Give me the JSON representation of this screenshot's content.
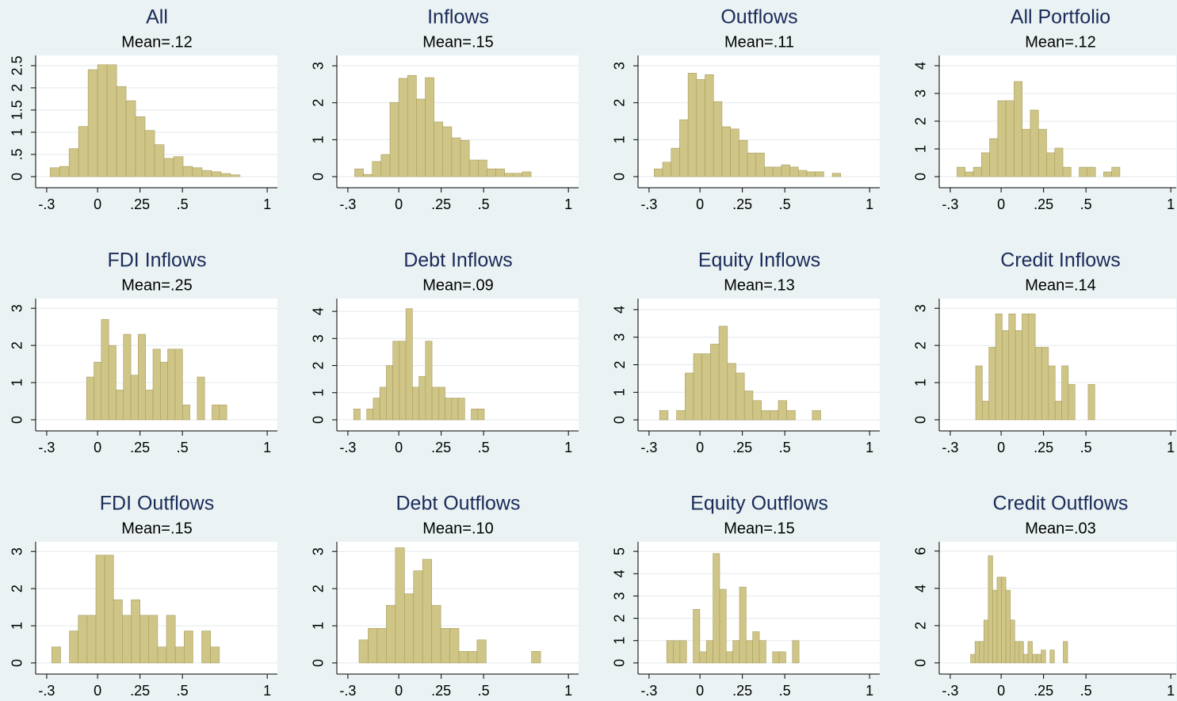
{
  "chart_data": [
    {
      "type": "histogram",
      "title": "All",
      "subtitle": "Mean=.12",
      "color": "#cfc587",
      "bins": [
        -0.28,
        -0.224,
        -0.168,
        -0.112,
        -0.056,
        0,
        0.056,
        0.112,
        0.168,
        0.224,
        0.28,
        0.336,
        0.392,
        0.448,
        0.504,
        0.56,
        0.616,
        0.672,
        0.728,
        0.784,
        0.84
      ],
      "values": [
        0.2,
        0.23,
        0.63,
        1.13,
        2.41,
        2.52,
        2.52,
        2.03,
        1.71,
        1.35,
        1.04,
        0.72,
        0.41,
        0.45,
        0.23,
        0.2,
        0.14,
        0.11,
        0.07,
        0.04
      ],
      "xlim": [
        -0.365,
        1.06
      ],
      "ylim": [
        -0.25,
        2.73
      ],
      "xticks": [
        {
          "value": -0.3,
          "label": "-.3"
        },
        0,
        {
          "value": 0.25,
          "label": ".25"
        },
        {
          "value": 0.5,
          "label": ".5"
        },
        1
      ],
      "yticks": [
        0,
        {
          "value": 0.5,
          "label": ".5"
        },
        1,
        1.5,
        2,
        2.5
      ],
      "grid": true
    },
    {
      "type": "histogram",
      "title": "Inflows",
      "subtitle": "Mean=.15",
      "color": "#cfc587",
      "bins": [
        -0.26,
        -0.208,
        -0.156,
        -0.104,
        -0.052,
        0,
        0.052,
        0.104,
        0.156,
        0.208,
        0.26,
        0.312,
        0.364,
        0.416,
        0.468,
        0.52,
        0.572,
        0.624,
        0.676,
        0.728,
        0.78
      ],
      "values": [
        0.21,
        0.06,
        0.41,
        0.6,
        2.01,
        2.66,
        2.74,
        2.1,
        2.68,
        1.48,
        1.35,
        1.05,
        0.98,
        0.45,
        0.45,
        0.21,
        0.21,
        0.09,
        0.09,
        0.13
      ],
      "xlim": [
        -0.365,
        1.06
      ],
      "ylim": [
        -0.3,
        3.28
      ],
      "xticks": [
        {
          "value": -0.3,
          "label": "-.3"
        },
        0,
        {
          "value": 0.25,
          "label": ".25"
        },
        {
          "value": 0.5,
          "label": ".5"
        },
        1
      ],
      "yticks": [
        0,
        1,
        2,
        3
      ],
      "grid": true
    },
    {
      "type": "histogram",
      "title": "Outflows",
      "subtitle": "Mean=.11",
      "color": "#cfc587",
      "bins": [
        -0.27,
        -0.22,
        -0.17,
        -0.12,
        -0.07,
        -0.02,
        0.03,
        0.08,
        0.13,
        0.18,
        0.23,
        0.28,
        0.33,
        0.38,
        0.43,
        0.48,
        0.53,
        0.58,
        0.63,
        0.68,
        0.73,
        0.78,
        0.83
      ],
      "values": [
        0.21,
        0.39,
        0.77,
        1.54,
        2.8,
        2.63,
        2.76,
        2.03,
        1.35,
        1.29,
        0.98,
        0.64,
        0.64,
        0.26,
        0.26,
        0.32,
        0.26,
        0.17,
        0.13,
        0.13,
        0,
        0.09
      ],
      "xlim": [
        -0.365,
        1.06
      ],
      "ylim": [
        -0.3,
        3.28
      ],
      "xticks": [
        {
          "value": -0.3,
          "label": "-.3"
        },
        0,
        {
          "value": 0.25,
          "label": ".25"
        },
        {
          "value": 0.5,
          "label": ".5"
        },
        1
      ],
      "yticks": [
        0,
        1,
        2,
        3
      ],
      "grid": true
    },
    {
      "type": "histogram",
      "title": "All Portfolio",
      "subtitle": "Mean=.12",
      "color": "#cfc587",
      "bins": [
        -0.26,
        -0.212,
        -0.164,
        -0.116,
        -0.068,
        -0.02,
        0.028,
        0.076,
        0.124,
        0.172,
        0.22,
        0.268,
        0.316,
        0.364,
        0.412,
        0.46,
        0.508,
        0.556,
        0.604,
        0.652,
        0.7
      ],
      "values": [
        0.34,
        0.17,
        0.34,
        0.86,
        1.37,
        2.74,
        2.74,
        3.43,
        1.71,
        2.4,
        1.71,
        0.86,
        1.03,
        0.34,
        0,
        0.34,
        0.34,
        0,
        0.17,
        0.34
      ],
      "xlim": [
        -0.365,
        1.06
      ],
      "ylim": [
        -0.4,
        4.37
      ],
      "xticks": [
        {
          "value": -0.3,
          "label": "-.3"
        },
        0,
        {
          "value": 0.25,
          "label": ".25"
        },
        {
          "value": 0.5,
          "label": ".5"
        },
        1
      ],
      "yticks": [
        0,
        1,
        2,
        3,
        4
      ],
      "grid": true
    },
    {
      "type": "histogram",
      "title": "FDI Inflows",
      "subtitle": "Mean=.25",
      "color": "#cfc587",
      "bins": [
        -0.065,
        -0.0215,
        0.022,
        0.0655,
        0.109,
        0.1525,
        0.196,
        0.2395,
        0.283,
        0.3265,
        0.37,
        0.4135,
        0.457,
        0.5005,
        0.544,
        0.5875,
        0.631,
        0.6745,
        0.718,
        0.7615
      ],
      "values": [
        1.15,
        1.55,
        2.7,
        2.0,
        0.8,
        2.3,
        1.2,
        2.3,
        0.8,
        1.9,
        1.55,
        1.9,
        1.9,
        0.4,
        0,
        1.15,
        0,
        0.4,
        0.4
      ],
      "xlim": [
        -0.365,
        1.06
      ],
      "ylim": [
        -0.3,
        3.26
      ],
      "xticks": [
        {
          "value": -0.3,
          "label": "-.3"
        },
        0,
        {
          "value": 0.25,
          "label": ".25"
        },
        {
          "value": 0.5,
          "label": ".5"
        },
        1
      ],
      "yticks": [
        0,
        1,
        2,
        3
      ],
      "grid": true
    },
    {
      "type": "histogram",
      "title": "Debt Inflows",
      "subtitle": "Mean=.09",
      "color": "#cfc587",
      "bins": [
        -0.266,
        -0.2275,
        -0.189,
        -0.1505,
        -0.112,
        -0.0735,
        -0.035,
        0.0035,
        0.042,
        0.0805,
        0.119,
        0.1575,
        0.196,
        0.2345,
        0.273,
        0.3115,
        0.35,
        0.3885,
        0.427,
        0.4655,
        0.504
      ],
      "values": [
        0.4,
        0,
        0.4,
        0.8,
        1.2,
        2.0,
        2.9,
        2.9,
        4.1,
        1.2,
        1.6,
        2.9,
        1.2,
        1.2,
        0.8,
        0.8,
        0.8,
        0,
        0.4,
        0.4
      ],
      "xlim": [
        -0.365,
        1.06
      ],
      "ylim": [
        -0.41,
        4.47
      ],
      "xticks": [
        {
          "value": -0.3,
          "label": "-.3"
        },
        0,
        {
          "value": 0.25,
          "label": ".25"
        },
        {
          "value": 0.5,
          "label": ".5"
        },
        1
      ],
      "yticks": [
        0,
        1,
        2,
        3,
        4
      ],
      "grid": true
    },
    {
      "type": "histogram",
      "title": "Equity Inflows",
      "subtitle": "Mean=.13",
      "color": "#cfc587",
      "bins": [
        -0.238,
        -0.188,
        -0.138,
        -0.088,
        -0.038,
        0.012,
        0.062,
        0.112,
        0.162,
        0.212,
        0.262,
        0.312,
        0.362,
        0.412,
        0.462,
        0.512,
        0.562,
        0.612,
        0.662,
        0.712
      ],
      "values": [
        0.34,
        0,
        0.34,
        1.7,
        2.4,
        2.4,
        2.75,
        3.4,
        2.05,
        1.7,
        1.05,
        0.7,
        0.34,
        0.34,
        0.7,
        0.34,
        0,
        0,
        0.34
      ],
      "xlim": [
        -0.365,
        1.06
      ],
      "ylim": [
        -0.4,
        4.4
      ],
      "xticks": [
        {
          "value": -0.3,
          "label": "-.3"
        },
        0,
        {
          "value": 0.25,
          "label": ".25"
        },
        {
          "value": 0.5,
          "label": ".5"
        },
        1
      ],
      "yticks": [
        0,
        1,
        2,
        3,
        4
      ],
      "grid": true
    },
    {
      "type": "histogram",
      "title": "Credit Inflows",
      "subtitle": "Mean=.14",
      "color": "#cfc587",
      "bins": [
        -0.15,
        -0.111,
        -0.072,
        -0.033,
        0.006,
        0.045,
        0.084,
        0.123,
        0.162,
        0.201,
        0.24,
        0.279,
        0.318,
        0.357,
        0.396,
        0.435,
        0.474,
        0.513,
        0.552
      ],
      "values": [
        1.45,
        0.5,
        1.95,
        2.85,
        2.4,
        2.85,
        2.4,
        2.85,
        2.85,
        1.95,
        1.95,
        1.45,
        0.5,
        1.45,
        0.95,
        0,
        0,
        0.95
      ],
      "xlim": [
        -0.365,
        1.06
      ],
      "ylim": [
        -0.3,
        3.26
      ],
      "xticks": [
        {
          "value": -0.3,
          "label": "-.3"
        },
        0,
        {
          "value": 0.25,
          "label": ".25"
        },
        {
          "value": 0.5,
          "label": ".5"
        },
        1
      ],
      "yticks": [
        0,
        1,
        2,
        3
      ],
      "grid": true
    },
    {
      "type": "histogram",
      "title": "FDI Outflows",
      "subtitle": "Mean=.15",
      "color": "#cfc587",
      "bins": [
        -0.27,
        -0.218,
        -0.166,
        -0.114,
        -0.062,
        -0.01,
        0.042,
        0.094,
        0.146,
        0.198,
        0.25,
        0.302,
        0.354,
        0.406,
        0.458,
        0.51,
        0.562,
        0.614,
        0.666,
        0.718
      ],
      "values": [
        0.43,
        0,
        0.86,
        1.28,
        1.28,
        2.9,
        2.9,
        1.7,
        1.28,
        1.7,
        1.28,
        1.28,
        0.43,
        1.28,
        0.43,
        0.86,
        0,
        0.86,
        0.43
      ],
      "xlim": [
        -0.365,
        1.06
      ],
      "ylim": [
        -0.3,
        3.26
      ],
      "xticks": [
        {
          "value": -0.3,
          "label": "-.3"
        },
        0,
        {
          "value": 0.25,
          "label": ".25"
        },
        {
          "value": 0.5,
          "label": ".5"
        },
        1
      ],
      "yticks": [
        0,
        1,
        2,
        3
      ],
      "grid": true
    },
    {
      "type": "histogram",
      "title": "Debt Outflows",
      "subtitle": "Mean=.10",
      "color": "#cfc587",
      "bins": [
        -0.234,
        -0.1805,
        -0.127,
        -0.0735,
        -0.02,
        0.0335,
        0.087,
        0.1405,
        0.194,
        0.2475,
        0.301,
        0.3545,
        0.408,
        0.4615,
        0.515,
        0.5685,
        0.622,
        0.6755,
        0.729,
        0.7825,
        0.836
      ],
      "values": [
        0.62,
        0.93,
        0.93,
        1.55,
        3.1,
        1.86,
        2.48,
        2.79,
        1.55,
        0.93,
        0.93,
        0.31,
        0.31,
        0.62,
        0,
        0,
        0,
        0,
        0,
        0.31
      ],
      "xlim": [
        -0.365,
        1.06
      ],
      "ylim": [
        -0.3,
        3.26
      ],
      "xticks": [
        {
          "value": -0.3,
          "label": "-.3"
        },
        0,
        {
          "value": 0.25,
          "label": ".25"
        },
        {
          "value": 0.5,
          "label": ".5"
        },
        1
      ],
      "yticks": [
        0,
        1,
        2,
        3
      ],
      "grid": true
    },
    {
      "type": "histogram",
      "title": "Equity Outflows",
      "subtitle": "Mean=.15",
      "color": "#cfc587",
      "bins": [
        -0.196,
        -0.157,
        -0.118,
        -0.079,
        -0.04,
        -0.001,
        0.038,
        0.077,
        0.116,
        0.155,
        0.194,
        0.233,
        0.272,
        0.311,
        0.35,
        0.389,
        0.428,
        0.467,
        0.506,
        0.545,
        0.584
      ],
      "values": [
        1,
        1,
        1,
        0,
        2.4,
        0.5,
        1,
        4.9,
        3.3,
        0.5,
        1,
        3.4,
        1,
        1.4,
        1,
        0,
        0.5,
        0.5,
        0,
        1
      ],
      "xlim": [
        -0.365,
        1.06
      ],
      "ylim": [
        -0.5,
        5.43
      ],
      "xticks": [
        {
          "value": -0.3,
          "label": "-.3"
        },
        0,
        {
          "value": 0.25,
          "label": ".25"
        },
        {
          "value": 0.5,
          "label": ".5"
        },
        1
      ],
      "yticks": [
        0,
        1,
        2,
        3,
        4,
        5
      ],
      "grid": true
    },
    {
      "type": "histogram",
      "title": "Credit Outflows",
      "subtitle": "Mean=.03",
      "color": "#cfc587",
      "bins": [
        -0.18,
        -0.154,
        -0.128,
        -0.102,
        -0.076,
        -0.05,
        -0.024,
        0.002,
        0.028,
        0.054,
        0.08,
        0.106,
        0.132,
        0.158,
        0.184,
        0.21,
        0.236,
        0.262,
        0.288,
        0.314,
        0.34,
        0.366,
        0.392
      ],
      "values": [
        0.46,
        1.15,
        1.15,
        2.3,
        5.75,
        3.9,
        4.6,
        4.6,
        3.9,
        2.3,
        1.15,
        1.15,
        0.46,
        1.15,
        0.46,
        0.46,
        0.69,
        0,
        0.69,
        0,
        0,
        1.15
      ],
      "xlim": [
        -0.365,
        1.06
      ],
      "ylim": [
        -0.6,
        6.5
      ],
      "xticks": [
        {
          "value": -0.3,
          "label": "-.3"
        },
        0,
        {
          "value": 0.25,
          "label": ".25"
        },
        {
          "value": 0.5,
          "label": ".5"
        },
        1
      ],
      "yticks": [
        0,
        2,
        4,
        6
      ],
      "grid": true
    }
  ]
}
